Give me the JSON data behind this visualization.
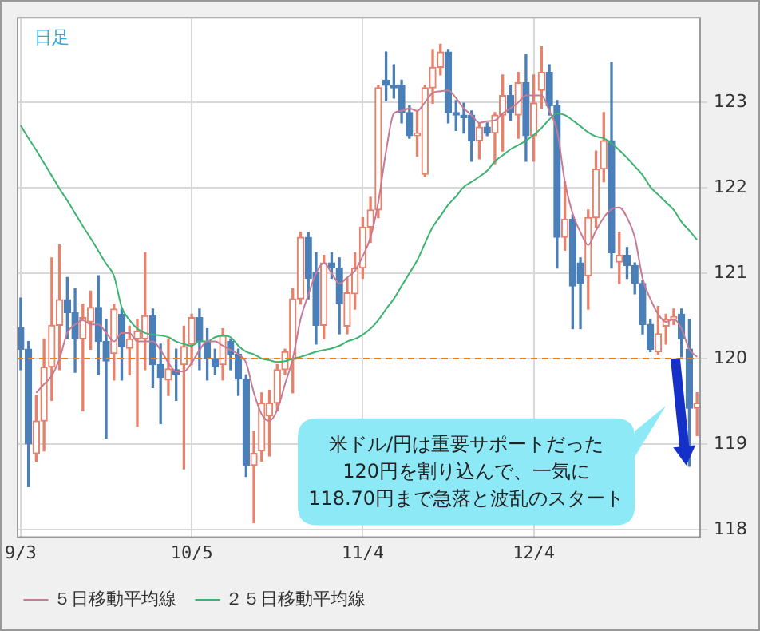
{
  "chart_data": {
    "type": "candlestick",
    "categories": [
      "9/3",
      null,
      null,
      null,
      null,
      null,
      null,
      null,
      null,
      null,
      null,
      null,
      null,
      null,
      null,
      null,
      null,
      null,
      null,
      null,
      null,
      null,
      "10/5",
      null,
      null,
      null,
      null,
      null,
      null,
      null,
      null,
      null,
      null,
      null,
      null,
      null,
      null,
      null,
      null,
      null,
      null,
      null,
      null,
      null,
      "11/4",
      null,
      null,
      null,
      null,
      null,
      null,
      null,
      null,
      null,
      null,
      null,
      null,
      null,
      null,
      null,
      null,
      null,
      null,
      null,
      null,
      null,
      "12/4",
      null,
      null,
      null,
      null,
      null,
      null,
      null,
      null,
      null,
      null,
      null,
      null,
      null,
      null,
      null,
      null,
      null,
      null,
      null,
      null,
      null
    ],
    "ohlc": [
      [
        120.36,
        120.71,
        119.87,
        120.11
      ],
      [
        120.11,
        120.2,
        118.5,
        119.0
      ],
      [
        118.89,
        119.57,
        118.8,
        119.27
      ],
      [
        119.27,
        120.23,
        118.92,
        119.9
      ],
      [
        119.9,
        121.18,
        119.51,
        120.39
      ],
      [
        120.39,
        121.33,
        119.87,
        120.69
      ],
      [
        120.69,
        120.95,
        120.23,
        120.54
      ],
      [
        120.54,
        120.82,
        119.84,
        120.23
      ],
      [
        120.23,
        120.64,
        119.39,
        120.48
      ],
      [
        120.43,
        120.79,
        120.11,
        120.6
      ],
      [
        120.6,
        120.97,
        119.81,
        120.2
      ],
      [
        120.2,
        120.46,
        119.07,
        119.97
      ],
      [
        120.06,
        120.64,
        119.75,
        120.58
      ],
      [
        120.52,
        120.58,
        119.75,
        120.14
      ],
      [
        120.12,
        120.38,
        119.81,
        120.23
      ],
      [
        120.23,
        120.46,
        119.21,
        120.32
      ],
      [
        120.23,
        121.24,
        119.87,
        120.5
      ],
      [
        120.5,
        120.58,
        119.66,
        119.93
      ],
      [
        119.93,
        120.17,
        119.24,
        119.78
      ],
      [
        119.75,
        120.23,
        119.57,
        119.88
      ],
      [
        119.87,
        120.11,
        119.51,
        119.81
      ],
      [
        119.93,
        120.38,
        118.71,
        120.14
      ],
      [
        120.17,
        120.52,
        119.93,
        120.48
      ],
      [
        120.48,
        120.58,
        119.87,
        120.2
      ],
      [
        120.2,
        120.35,
        119.75,
        120.0
      ],
      [
        120.0,
        120.11,
        119.81,
        119.9
      ],
      [
        119.93,
        120.35,
        119.75,
        120.27
      ],
      [
        120.2,
        120.23,
        119.87,
        120.05
      ],
      [
        120.05,
        120.11,
        119.57,
        119.76
      ],
      [
        119.76,
        119.81,
        118.62,
        118.75
      ],
      [
        118.75,
        119.15,
        118.08,
        118.89
      ],
      [
        118.92,
        119.6,
        118.8,
        119.48
      ],
      [
        119.33,
        119.63,
        118.86,
        119.48
      ],
      [
        119.48,
        119.93,
        119.39,
        119.87
      ],
      [
        119.87,
        120.11,
        119.81,
        120.08
      ],
      [
        119.99,
        120.82,
        119.6,
        120.7
      ],
      [
        120.7,
        121.48,
        120.64,
        121.42
      ],
      [
        121.42,
        121.48,
        120.7,
        120.94
      ],
      [
        121.01,
        121.24,
        120.17,
        120.39
      ],
      [
        120.39,
        121.21,
        120.23,
        121.12
      ],
      [
        121.12,
        121.24,
        120.94,
        121.06
      ],
      [
        121.06,
        121.18,
        120.29,
        120.64
      ],
      [
        120.38,
        120.94,
        120.29,
        120.77
      ],
      [
        120.76,
        121.24,
        120.58,
        121.06
      ],
      [
        121.06,
        121.65,
        120.94,
        121.54
      ],
      [
        121.54,
        121.89,
        121.36,
        121.74
      ],
      [
        121.74,
        123.2,
        121.65,
        123.17
      ],
      [
        123.26,
        123.59,
        123.02,
        123.2
      ],
      [
        123.2,
        123.44,
        123.05,
        123.17
      ],
      [
        123.2,
        123.26,
        122.76,
        122.88
      ],
      [
        122.88,
        122.96,
        122.58,
        122.61
      ],
      [
        122.61,
        122.9,
        122.37,
        122.64
      ],
      [
        122.16,
        123.2,
        122.13,
        123.17
      ],
      [
        123.17,
        123.62,
        122.99,
        123.41
      ],
      [
        123.41,
        123.68,
        123.32,
        123.59
      ],
      [
        123.59,
        123.62,
        122.76,
        122.88
      ],
      [
        122.88,
        123.02,
        122.67,
        122.85
      ],
      [
        122.85,
        122.99,
        122.64,
        122.82
      ],
      [
        122.85,
        122.9,
        122.31,
        122.55
      ],
      [
        122.55,
        122.76,
        122.34,
        122.71
      ],
      [
        122.71,
        122.76,
        122.61,
        122.64
      ],
      [
        122.64,
        122.88,
        122.28,
        122.85
      ],
      [
        122.85,
        123.32,
        122.43,
        123.08
      ],
      [
        123.08,
        123.2,
        122.79,
        122.88
      ],
      [
        122.85,
        123.35,
        122.58,
        123.23
      ],
      [
        123.23,
        123.56,
        122.31,
        122.61
      ],
      [
        122.61,
        123.32,
        122.31,
        122.99
      ],
      [
        123.14,
        123.65,
        122.93,
        123.35
      ],
      [
        123.35,
        123.44,
        122.85,
        122.96
      ],
      [
        122.96,
        123.02,
        121.06,
        121.42
      ],
      [
        121.42,
        122.07,
        121.27,
        121.63
      ],
      [
        121.63,
        121.68,
        120.35,
        120.85
      ],
      [
        121.12,
        121.18,
        120.35,
        120.88
      ],
      [
        120.97,
        121.74,
        120.58,
        121.65
      ],
      [
        121.65,
        122.43,
        121.54,
        122.22
      ],
      [
        122.22,
        122.88,
        122.07,
        122.55
      ],
      [
        122.55,
        123.47,
        121.06,
        121.24
      ],
      [
        121.13,
        121.48,
        120.88,
        121.21
      ],
      [
        121.21,
        121.3,
        120.94,
        121.09
      ],
      [
        121.09,
        121.12,
        120.76,
        120.88
      ],
      [
        120.88,
        120.91,
        120.29,
        120.4
      ],
      [
        120.4,
        120.46,
        120.08,
        120.11
      ],
      [
        120.08,
        120.61,
        120.05,
        120.29
      ],
      [
        120.38,
        120.52,
        120.17,
        120.46
      ],
      [
        120.46,
        120.58,
        120.4,
        120.49
      ],
      [
        120.52,
        120.58,
        120.02,
        120.23
      ],
      [
        120.11,
        120.46,
        118.74,
        119.42
      ],
      [
        119.42,
        119.6,
        119.1,
        119.48
      ]
    ],
    "colors": [
      "#4a7fb8",
      "#4a7fb8",
      "#e8806a",
      "#e8806a",
      "#e8806a",
      "#e8806a",
      "#4a7fb8",
      "#4a7fb8",
      "#e8806a",
      "#e8806a",
      "#4a7fb8",
      "#4a7fb8",
      "#e8806a",
      "#4a7fb8",
      "#e8806a",
      "#e8806a",
      "#e8806a",
      "#4a7fb8",
      "#4a7fb8",
      "#e8806a",
      "#4a7fb8",
      "#e8806a",
      "#e8806a",
      "#4a7fb8",
      "#4a7fb8",
      "#4a7fb8",
      "#e8806a",
      "#4a7fb8",
      "#4a7fb8",
      "#4a7fb8",
      "#e8806a",
      "#e8806a",
      "#e8806a",
      "#e8806a",
      "#e8806a",
      "#e8806a",
      "#e8806a",
      "#4a7fb8",
      "#4a7fb8",
      "#e8806a",
      "#4a7fb8",
      "#4a7fb8",
      "#e8806a",
      "#e8806a",
      "#e8806a",
      "#e8806a",
      "#e8806a",
      "#4a7fb8",
      "#4a7fb8",
      "#4a7fb8",
      "#4a7fb8",
      "#e8806a",
      "#e8806a",
      "#e8806a",
      "#e8806a",
      "#4a7fb8",
      "#4a7fb8",
      "#4a7fb8",
      "#4a7fb8",
      "#e8806a",
      "#4a7fb8",
      "#e8806a",
      "#e8806a",
      "#4a7fb8",
      "#e8806a",
      "#4a7fb8",
      "#e8806a",
      "#e8806a",
      "#4a7fb8",
      "#4a7fb8",
      "#e8806a",
      "#4a7fb8",
      "#4a7fb8",
      "#e8806a",
      "#e8806a",
      "#e8806a",
      "#4a7fb8",
      "#e8806a",
      "#4a7fb8",
      "#4a7fb8",
      "#4a7fb8",
      "#4a7fb8",
      "#e8806a",
      "#e8806a",
      "#e8806a",
      "#4a7fb8",
      "#4a7fb8",
      "#e8806a"
    ],
    "series": [
      {
        "name": "５日移動平均線",
        "type": "line",
        "color": "#c87a92",
        "values": [
          null,
          null,
          119.6,
          119.7,
          119.8,
          120.0,
          120.3,
          120.4,
          120.45,
          120.4,
          120.4,
          120.3,
          120.2,
          120.3,
          120.3,
          120.2,
          120.2,
          120.2,
          120.1,
          119.95,
          119.85,
          119.85,
          119.95,
          120.1,
          120.2,
          120.2,
          120.15,
          120.1,
          120.05,
          119.95,
          119.6,
          119.35,
          119.27,
          119.4,
          119.7,
          120.0,
          120.46,
          120.75,
          121.0,
          121.12,
          121.0,
          120.88,
          120.95,
          121.03,
          121.2,
          121.42,
          121.83,
          122.43,
          122.87,
          122.9,
          122.93,
          122.9,
          123.0,
          123.11,
          123.13,
          123.14,
          123.05,
          122.93,
          122.85,
          122.76,
          122.78,
          122.79,
          122.87,
          122.93,
          123.0,
          123.08,
          123.08,
          123.08,
          122.9,
          122.67,
          122.07,
          121.7,
          121.48,
          121.33,
          121.5,
          121.65,
          121.75,
          121.77,
          121.65,
          121.42,
          120.94,
          120.7,
          120.52,
          120.43,
          120.46,
          120.35,
          120.11,
          120.02
        ]
      },
      {
        "name": "２５日移動平均線",
        "type": "line",
        "color": "#3cb371",
        "values": [
          122.73,
          122.58,
          122.44,
          122.29,
          122.14,
          121.99,
          121.85,
          121.7,
          121.55,
          121.41,
          121.26,
          121.11,
          120.97,
          120.6,
          120.45,
          120.35,
          120.3,
          120.28,
          120.27,
          120.25,
          120.2,
          120.17,
          120.15,
          120.2,
          120.2,
          120.25,
          120.27,
          120.25,
          120.15,
          120.08,
          120.05,
          120.0,
          119.98,
          119.96,
          119.97,
          120.0,
          120.02,
          120.05,
          120.08,
          120.1,
          120.12,
          120.15,
          120.2,
          120.23,
          120.28,
          120.35,
          120.45,
          120.58,
          120.7,
          120.85,
          121.0,
          121.15,
          121.35,
          121.54,
          121.67,
          121.8,
          121.9,
          122.01,
          122.07,
          122.13,
          122.2,
          122.31,
          122.38,
          122.45,
          122.5,
          122.55,
          122.62,
          122.7,
          122.8,
          122.87,
          122.85,
          122.79,
          122.72,
          122.65,
          122.6,
          122.58,
          122.52,
          122.44,
          122.35,
          122.25,
          122.15,
          122.01,
          121.92,
          121.83,
          121.74,
          121.6,
          121.5,
          121.39
        ]
      }
    ],
    "ylim": [
      117.9,
      124.0
    ],
    "yticks": [
      118,
      119,
      120,
      121,
      122,
      123
    ],
    "ref_lines": [
      {
        "axis": "y",
        "value": 120,
        "color": "#f08010",
        "line_style": "dashed"
      }
    ],
    "annotations": [
      "日足",
      "米ドル/円は重要サポートだった\n120円を割り込んで、一気に\n118.70円まで急落と波乱のスタート"
    ],
    "grid": true,
    "legend": "bottom left"
  }
}
